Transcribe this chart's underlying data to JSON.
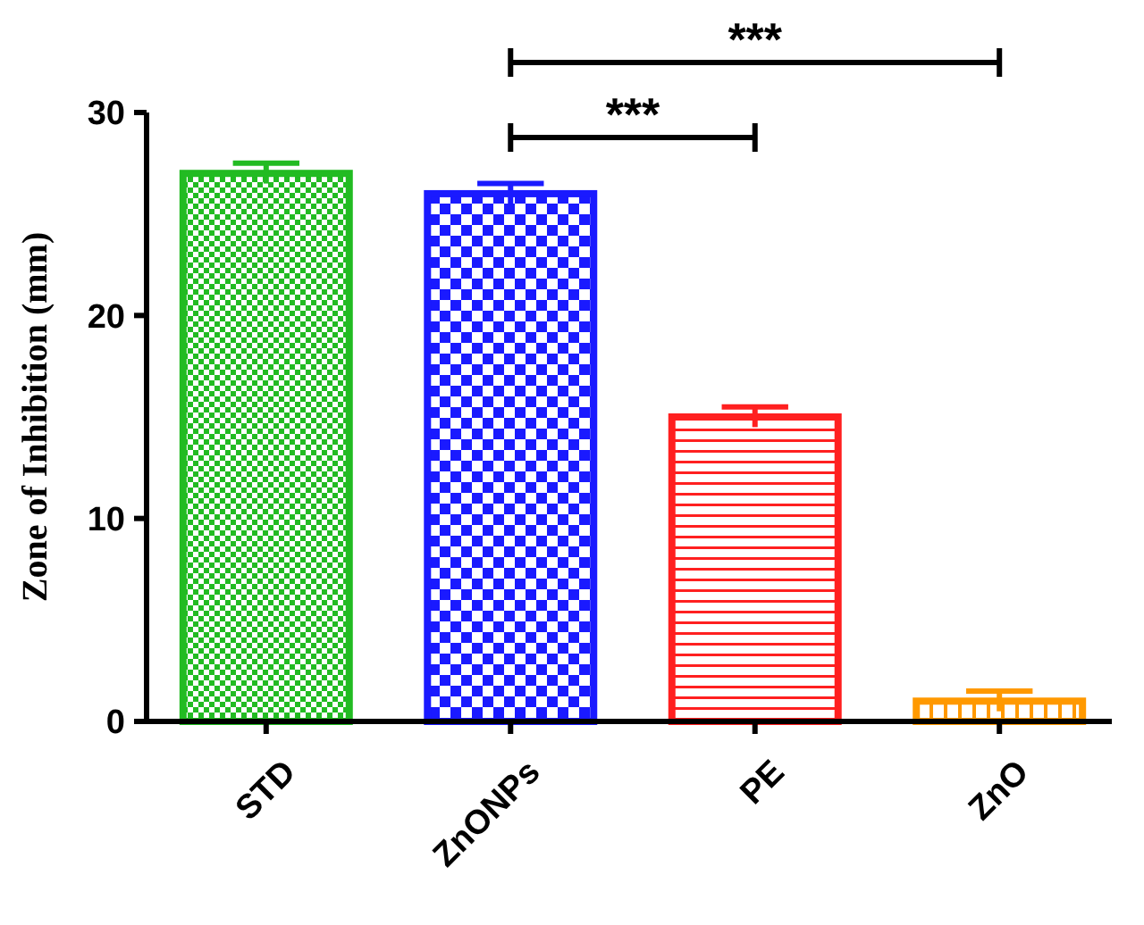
{
  "chart_data": {
    "type": "bar",
    "ylabel": "Zone of Inhibition (mm)",
    "categories": [
      "STD",
      "ZnONPs",
      "PE",
      "ZnO"
    ],
    "values": [
      27,
      26,
      15,
      1
    ],
    "colors": [
      "#22bb22",
      "#1a1aff",
      "#ff2020",
      "#ff9900"
    ],
    "errors": [
      0.5,
      0.5,
      0.5,
      0.5
    ],
    "ylim": [
      0,
      30
    ],
    "yticks": [
      0,
      10,
      20,
      30
    ],
    "grid": false,
    "annotations": [
      "***",
      "***"
    ]
  }
}
